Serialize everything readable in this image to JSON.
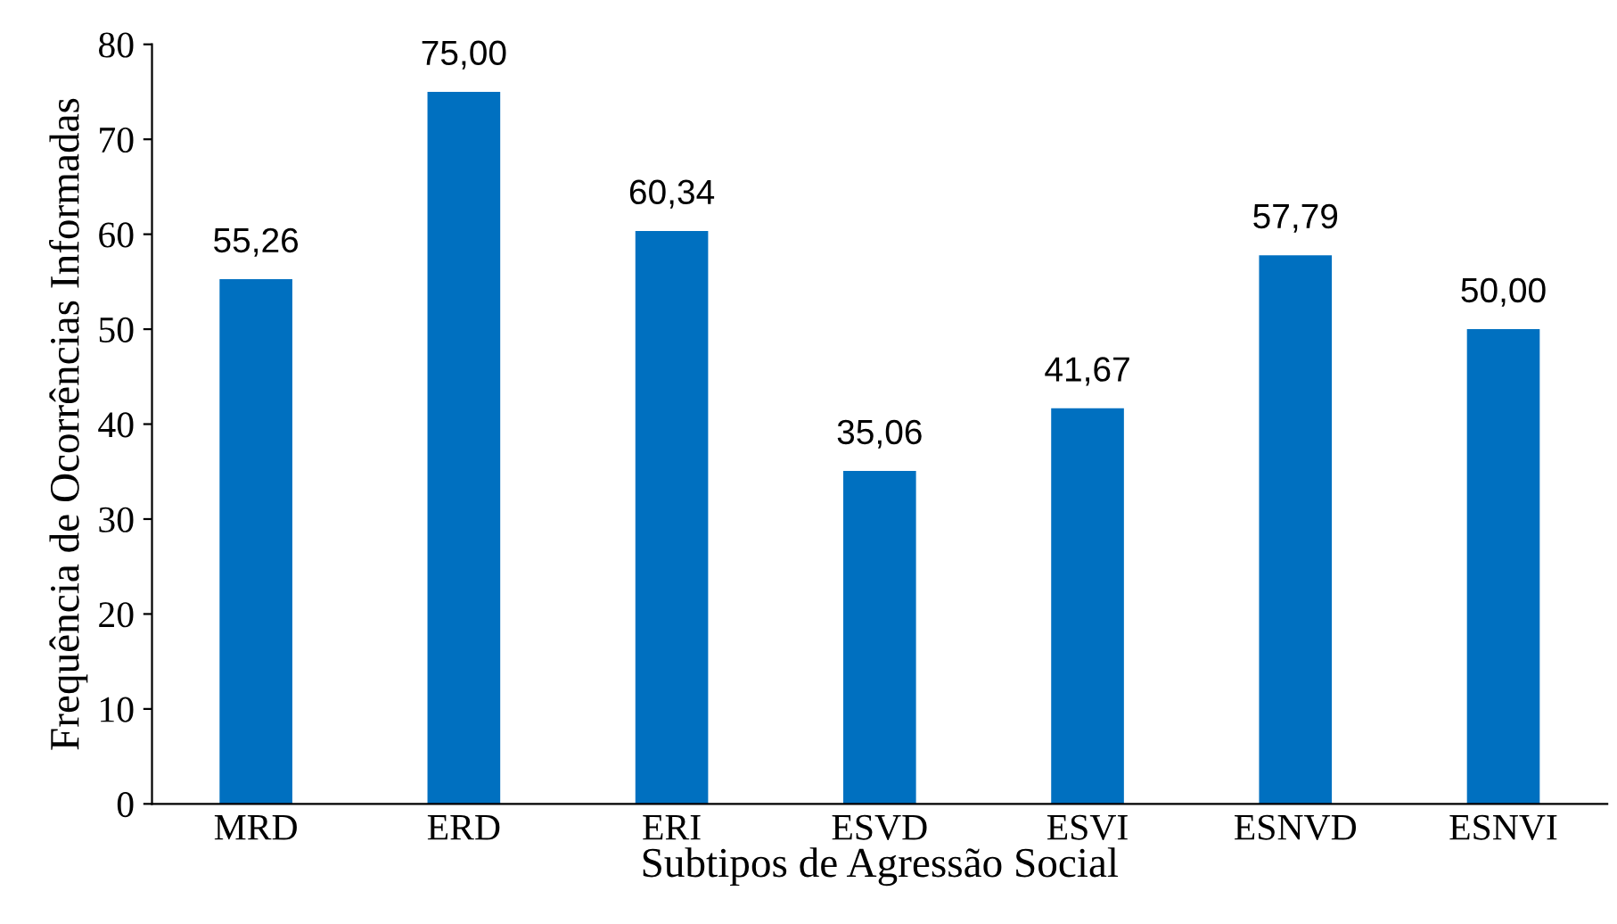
{
  "chart_data": {
    "type": "bar",
    "xlabel": "Subtipos de Agressão Social",
    "ylabel": "Frequência de Ocorrências Informadas",
    "categories": [
      "MRD",
      "ERD",
      "ERI",
      "ESVD",
      "ESVI",
      "ESNVD",
      "ESNVI"
    ],
    "values": [
      55.26,
      75.0,
      60.34,
      35.06,
      41.67,
      57.79,
      50.0
    ],
    "value_labels": [
      "55,26",
      "75,00",
      "60,34",
      "35,06",
      "41,67",
      "57,79",
      "50,00"
    ],
    "color": "#0070c0",
    "ylim": [
      0,
      80
    ],
    "yticks": [
      0,
      10,
      20,
      30,
      40,
      50,
      60,
      70,
      80
    ],
    "legend": false,
    "grid": false
  }
}
